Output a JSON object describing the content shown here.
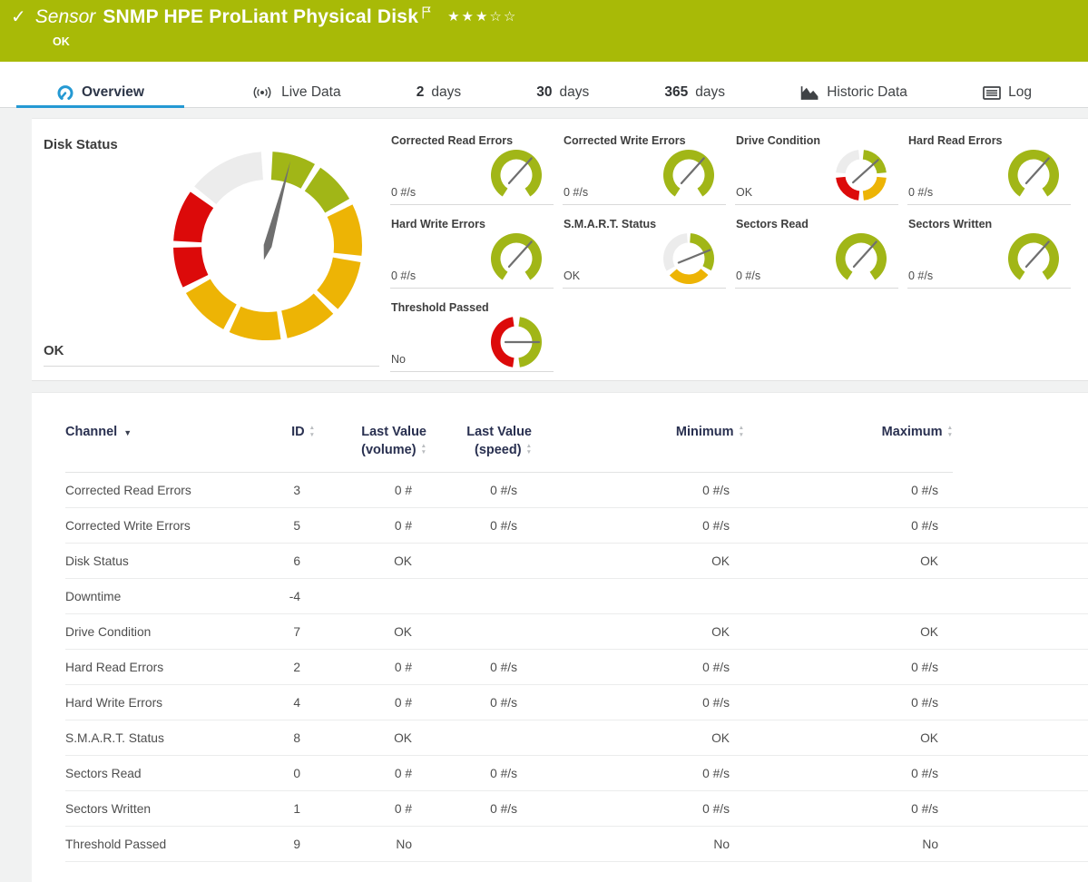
{
  "header": {
    "kind_label": "Sensor",
    "title": "SNMP HPE ProLiant Physical Disk",
    "status_text": "OK",
    "rating": {
      "filled": 3,
      "total": 5
    }
  },
  "tabs": {
    "items": [
      {
        "id": "overview",
        "icon": "gauge-icon",
        "label": "Overview",
        "active": true
      },
      {
        "id": "live-data",
        "icon": "broadcast-icon",
        "label": "Live Data"
      },
      {
        "id": "2-days",
        "prefix": "2",
        "label": "days"
      },
      {
        "id": "30-days",
        "prefix": "30",
        "label": "days"
      },
      {
        "id": "365-days",
        "prefix": "365",
        "label": "days"
      },
      {
        "id": "historic-data",
        "icon": "area-chart-icon",
        "label": "Historic Data"
      },
      {
        "id": "log",
        "icon": "log-icon",
        "label": "Log"
      }
    ]
  },
  "gauges_panel": {
    "primary": {
      "label": "Disk Status",
      "value": "OK",
      "needle_deg": 15,
      "segments": [
        {
          "from": 3,
          "to": 30,
          "color": "green"
        },
        {
          "from": 34,
          "to": 60,
          "color": "green"
        },
        {
          "from": 64,
          "to": 96,
          "color": "yellow"
        },
        {
          "from": 100,
          "to": 132,
          "color": "yellow"
        },
        {
          "from": 136,
          "to": 168,
          "color": "yellow"
        },
        {
          "from": 172,
          "to": 204,
          "color": "yellow"
        },
        {
          "from": 208,
          "to": 240,
          "color": "yellow"
        },
        {
          "from": 244,
          "to": 269,
          "color": "red"
        },
        {
          "from": 273,
          "to": 305,
          "color": "red"
        },
        {
          "from": 309,
          "to": 356,
          "color": "gray"
        }
      ]
    },
    "small": [
      {
        "label": "Corrected Read Errors",
        "value": "0 #/s",
        "needle_deg": 42,
        "segments": [
          {
            "from": 213,
            "to": 507,
            "color": "green"
          }
        ]
      },
      {
        "label": "Corrected Write Errors",
        "value": "0 #/s",
        "needle_deg": 42,
        "segments": [
          {
            "from": 213,
            "to": 507,
            "color": "green"
          }
        ]
      },
      {
        "label": "Drive Condition",
        "value": "OK",
        "needle_deg": 48,
        "segments": [
          {
            "from": 6,
            "to": 84,
            "color": "green"
          },
          {
            "from": 96,
            "to": 174,
            "color": "yellow"
          },
          {
            "from": 186,
            "to": 264,
            "color": "red"
          },
          {
            "from": 276,
            "to": 354,
            "color": "gray"
          }
        ]
      },
      {
        "label": "Hard Read Errors",
        "value": "0 #/s",
        "needle_deg": 42,
        "segments": [
          {
            "from": 213,
            "to": 507,
            "color": "green"
          }
        ]
      },
      {
        "label": "Hard Write Errors",
        "value": "0 #/s",
        "needle_deg": 42,
        "segments": [
          {
            "from": 213,
            "to": 507,
            "color": "green"
          }
        ]
      },
      {
        "label": "S.M.A.R.T. Status",
        "value": "OK",
        "needle_deg": 68,
        "segments": [
          {
            "from": 4,
            "to": 118,
            "color": "green"
          },
          {
            "from": 130,
            "to": 229,
            "color": "yellow"
          },
          {
            "from": 241,
            "to": 356,
            "color": "gray"
          }
        ]
      },
      {
        "label": "Sectors Read",
        "value": "0 #/s",
        "needle_deg": 42,
        "segments": [
          {
            "from": 213,
            "to": 507,
            "color": "green"
          }
        ]
      },
      {
        "label": "Sectors Written",
        "value": "0 #/s",
        "needle_deg": 42,
        "segments": [
          {
            "from": 213,
            "to": 507,
            "color": "green"
          }
        ]
      },
      {
        "label": "Threshold Passed",
        "value": "No",
        "needle_deg": 90,
        "segments": [
          {
            "from": 8,
            "to": 172,
            "color": "green"
          },
          {
            "from": 188,
            "to": 352,
            "color": "red"
          }
        ]
      }
    ]
  },
  "table": {
    "columns": [
      {
        "label": "Channel",
        "sub": "",
        "align": "left",
        "sort": "active-desc"
      },
      {
        "label": "ID",
        "sub": "",
        "align": "right",
        "sort": "both"
      },
      {
        "label": "Last Value",
        "sub": "(volume)",
        "align": "right",
        "sort": "both"
      },
      {
        "label": "Last Value",
        "sub": "(speed)",
        "align": "right",
        "sort": "both"
      },
      {
        "label": "Minimum",
        "sub": "",
        "align": "right",
        "sort": "both"
      },
      {
        "label": "Maximum",
        "sub": "",
        "align": "right",
        "sort": "both"
      }
    ],
    "rows": [
      {
        "channel": "Corrected Read Errors",
        "id": "3",
        "volume": "0 #",
        "speed": "0 #/s",
        "min": "0 #/s",
        "max": "0 #/s"
      },
      {
        "channel": "Corrected Write Errors",
        "id": "5",
        "volume": "0 #",
        "speed": "0 #/s",
        "min": "0 #/s",
        "max": "0 #/s"
      },
      {
        "channel": "Disk Status",
        "id": "6",
        "volume": "OK",
        "speed": "",
        "min": "OK",
        "max": "OK"
      },
      {
        "channel": "Downtime",
        "id": "-4",
        "volume": "",
        "speed": "",
        "min": "",
        "max": ""
      },
      {
        "channel": "Drive Condition",
        "id": "7",
        "volume": "OK",
        "speed": "",
        "min": "OK",
        "max": "OK"
      },
      {
        "channel": "Hard Read Errors",
        "id": "2",
        "volume": "0 #",
        "speed": "0 #/s",
        "min": "0 #/s",
        "max": "0 #/s"
      },
      {
        "channel": "Hard Write Errors",
        "id": "4",
        "volume": "0 #",
        "speed": "0 #/s",
        "min": "0 #/s",
        "max": "0 #/s"
      },
      {
        "channel": "S.M.A.R.T. Status",
        "id": "8",
        "volume": "OK",
        "speed": "",
        "min": "OK",
        "max": "OK"
      },
      {
        "channel": "Sectors Read",
        "id": "0",
        "volume": "0 #",
        "speed": "0 #/s",
        "min": "0 #/s",
        "max": "0 #/s"
      },
      {
        "channel": "Sectors Written",
        "id": "1",
        "volume": "0 #",
        "speed": "0 #/s",
        "min": "0 #/s",
        "max": "0 #/s"
      },
      {
        "channel": "Threshold Passed",
        "id": "9",
        "volume": "No",
        "speed": "",
        "min": "No",
        "max": "No"
      }
    ]
  },
  "colors": {
    "header_green": "#a8ba07",
    "gauge_green": "#a1b617",
    "gauge_yellow": "#edb405",
    "gauge_red": "#dc0a0a",
    "gauge_gray": "#ececec",
    "needle_gray": "#6f6f6f",
    "accent_blue": "#2499d3"
  }
}
